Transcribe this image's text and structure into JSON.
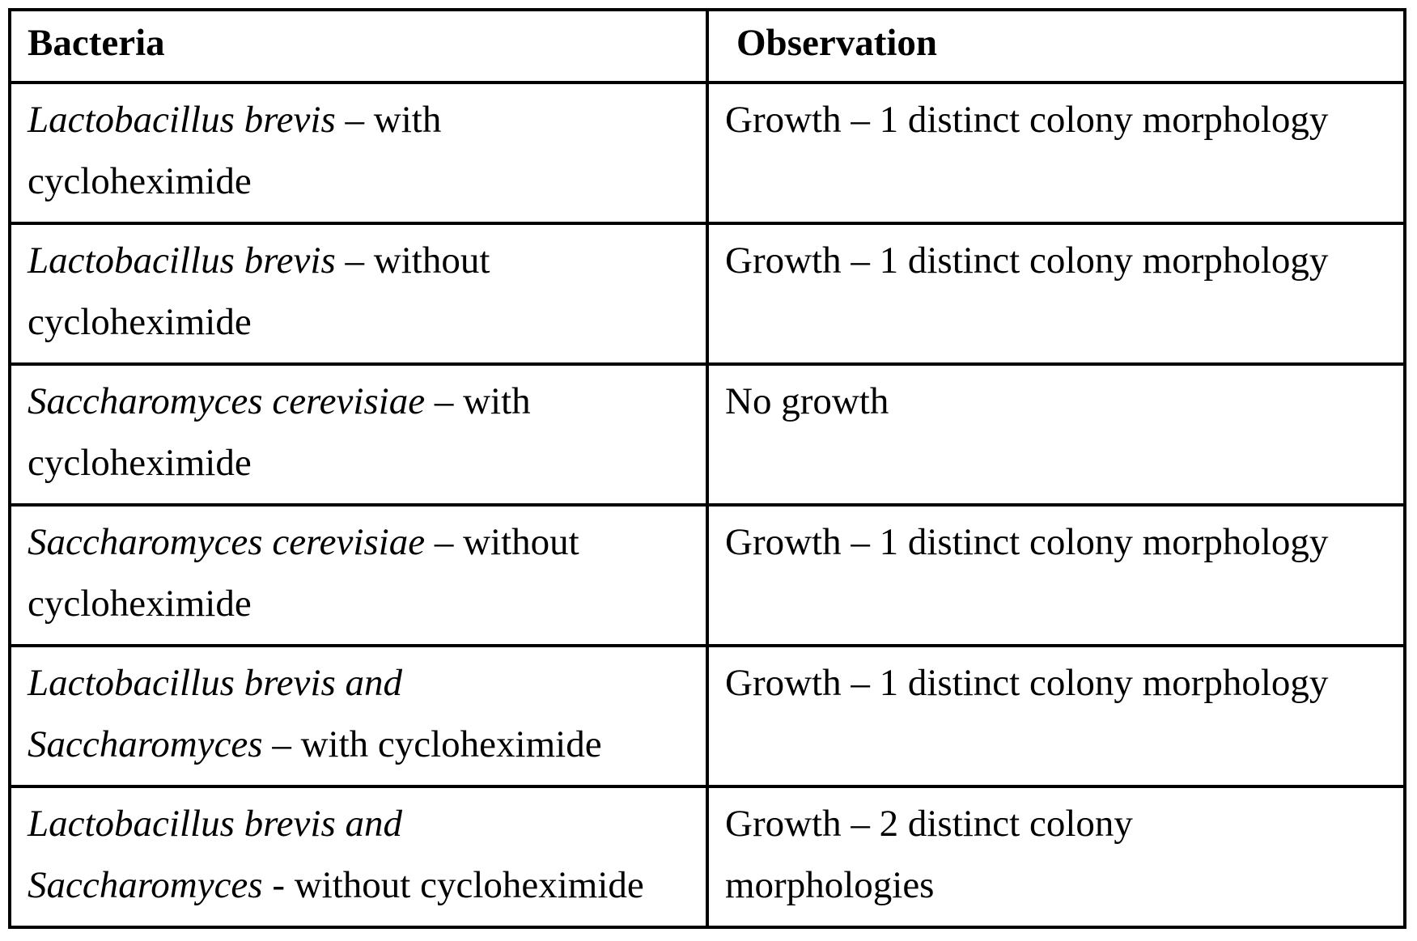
{
  "page": {
    "background_color": "#ffffff",
    "text_color": "#000000",
    "border_color": "#000000"
  },
  "table": {
    "columns": [
      {
        "label": "Bacteria"
      },
      {
        "label": "Observation"
      }
    ],
    "rows": [
      {
        "bacteria": {
          "lines": [
            [
              {
                "text": "Lactobacillus brevis",
                "italic": true
              },
              {
                "text": " – with",
                "italic": false
              }
            ],
            [
              {
                "text": "cycloheximide",
                "italic": false
              }
            ]
          ]
        },
        "observation": {
          "lines": [
            [
              {
                "text": "Growth – 1 distinct colony morphology",
                "italic": false
              }
            ]
          ]
        }
      },
      {
        "bacteria": {
          "lines": [
            [
              {
                "text": "Lactobacillus brevis",
                "italic": true
              },
              {
                "text": " – without",
                "italic": false
              }
            ],
            [
              {
                "text": "cycloheximide",
                "italic": false
              }
            ]
          ]
        },
        "observation": {
          "lines": [
            [
              {
                "text": "Growth – 1 distinct colony morphology",
                "italic": false
              }
            ]
          ]
        }
      },
      {
        "bacteria": {
          "lines": [
            [
              {
                "text": "Saccharomyces cerevisiae",
                "italic": true
              },
              {
                "text": " – with",
                "italic": false
              }
            ],
            [
              {
                "text": "cycloheximide",
                "italic": false
              }
            ]
          ]
        },
        "observation": {
          "lines": [
            [
              {
                "text": "No growth",
                "italic": false
              }
            ]
          ]
        }
      },
      {
        "bacteria": {
          "lines": [
            [
              {
                "text": "Saccharomyces cerevisiae",
                "italic": true
              },
              {
                "text": " – without",
                "italic": false
              }
            ],
            [
              {
                "text": "cycloheximide",
                "italic": false
              }
            ]
          ]
        },
        "observation": {
          "lines": [
            [
              {
                "text": "Growth – 1 distinct colony morphology",
                "italic": false
              }
            ]
          ]
        }
      },
      {
        "bacteria": {
          "lines": [
            [
              {
                "text": "Lactobacillus brevis and",
                "italic": true
              }
            ],
            [
              {
                "text": "Saccharomyces",
                "italic": true
              },
              {
                "text": " – with cycloheximide",
                "italic": false
              }
            ]
          ]
        },
        "observation": {
          "lines": [
            [
              {
                "text": "Growth – 1 distinct colony morphology",
                "italic": false
              }
            ]
          ]
        }
      },
      {
        "bacteria": {
          "lines": [
            [
              {
                "text": "Lactobacillus brevis and",
                "italic": true
              }
            ],
            [
              {
                "text": "Saccharomyces",
                "italic": true
              },
              {
                "text": " - without cycloheximide",
                "italic": false
              }
            ]
          ]
        },
        "observation": {
          "lines": [
            [
              {
                "text": "Growth – 2 distinct colony",
                "italic": false
              }
            ],
            [
              {
                "text": "morphologies",
                "italic": false
              }
            ]
          ]
        }
      }
    ]
  }
}
